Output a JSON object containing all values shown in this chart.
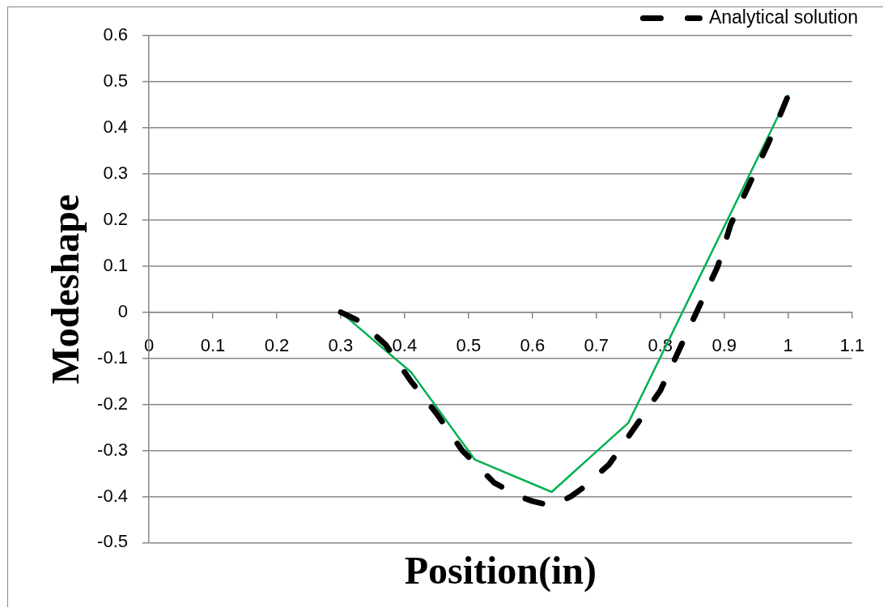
{
  "chart_data": {
    "type": "line",
    "xlabel": "Position(in)",
    "ylabel": "Modeshape",
    "xlim": [
      0,
      1.1
    ],
    "xticks": [
      0,
      0.1,
      0.2,
      0.3,
      0.4,
      0.5,
      0.6,
      0.7,
      0.8,
      0.9,
      1,
      1.1
    ],
    "ylim": [
      -0.5,
      0.6
    ],
    "yticks": [
      -0.5,
      -0.4,
      -0.3,
      -0.2,
      -0.1,
      0,
      0.1,
      0.2,
      0.3,
      0.4,
      0.5,
      0.6
    ],
    "grid": "y",
    "legend": "top right",
    "marker": "none",
    "series": [
      {
        "name": "Analytical solution",
        "color": "#000000",
        "line_style": "dashed",
        "x": [
          0.3,
          0.33,
          0.37,
          0.41,
          0.45,
          0.49,
          0.54,
          0.58,
          0.6,
          0.63,
          0.66,
          0.68,
          0.72,
          0.76,
          0.8,
          0.83,
          0.86,
          0.89,
          0.91,
          0.94,
          0.97,
          1.0
        ],
        "values": [
          0.0,
          -0.02,
          -0.07,
          -0.15,
          -0.22,
          -0.3,
          -0.37,
          -0.4,
          -0.41,
          -0.42,
          -0.4,
          -0.38,
          -0.33,
          -0.25,
          -0.17,
          -0.08,
          0.01,
          0.1,
          0.19,
          0.28,
          0.37,
          0.47
        ]
      },
      {
        "color": "#00b050",
        "line_style": "solid",
        "x": [
          0.3,
          0.41,
          0.51,
          0.63,
          0.75,
          1.0
        ],
        "values": [
          0.0,
          -0.13,
          -0.32,
          -0.39,
          -0.24,
          0.47
        ]
      }
    ]
  }
}
